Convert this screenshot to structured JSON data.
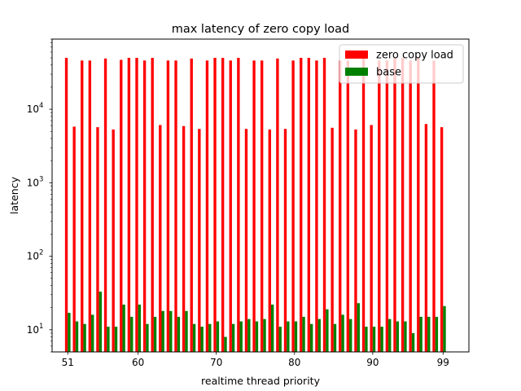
{
  "chart_data": {
    "type": "bar",
    "title": "max latency of zero copy load",
    "xlabel": "realtime thread priority",
    "ylabel": "latency",
    "yscale": "log",
    "ylim": [
      5,
      90000
    ],
    "xlim": [
      49,
      102.3
    ],
    "x_ticks": [
      51,
      60,
      70,
      80,
      90,
      99
    ],
    "y_ticks": [
      {
        "value": 10,
        "label": "10",
        "sup": "1"
      },
      {
        "value": 100,
        "label": "10",
        "sup": "2"
      },
      {
        "value": 1000,
        "label": "10",
        "sup": "3"
      },
      {
        "value": 10000,
        "label": "10",
        "sup": "4"
      }
    ],
    "grid": false,
    "legend_position": "top-right",
    "x": [
      51,
      52,
      53,
      54,
      55,
      56,
      57,
      58,
      59,
      60,
      61,
      62,
      63,
      64,
      65,
      66,
      67,
      68,
      69,
      70,
      71,
      72,
      73,
      74,
      75,
      76,
      77,
      78,
      79,
      80,
      81,
      82,
      83,
      84,
      85,
      86,
      87,
      88,
      89,
      90,
      91,
      92,
      93,
      94,
      95,
      96,
      97,
      98,
      99
    ],
    "series": [
      {
        "name": "zero copy load",
        "color": "#ff0000",
        "values": [
          50000,
          5800,
          46000,
          46000,
          5700,
          49000,
          5300,
          47000,
          50000,
          50000,
          46000,
          50000,
          6100,
          46000,
          46000,
          5900,
          49000,
          5400,
          46000,
          50000,
          50000,
          46000,
          50000,
          5400,
          46000,
          46000,
          5300,
          49000,
          5400,
          46000,
          50000,
          50000,
          46000,
          50000,
          5600,
          46000,
          46000,
          5300,
          49000,
          6100,
          46000,
          46000,
          50000,
          50000,
          46000,
          50000,
          6300,
          46000,
          5700
        ]
      },
      {
        "name": "base",
        "color": "#008000",
        "values": [
          17,
          13,
          12,
          16,
          33,
          11,
          11,
          22,
          15,
          22,
          12,
          15,
          18,
          18,
          15,
          18,
          12,
          11,
          12,
          13,
          8,
          12,
          13,
          14,
          13,
          14,
          22,
          11,
          13,
          13,
          15,
          12,
          14,
          19,
          12,
          16,
          14,
          23,
          11,
          11,
          11,
          14,
          13,
          13,
          9,
          15,
          15,
          15,
          21
        ]
      }
    ]
  }
}
